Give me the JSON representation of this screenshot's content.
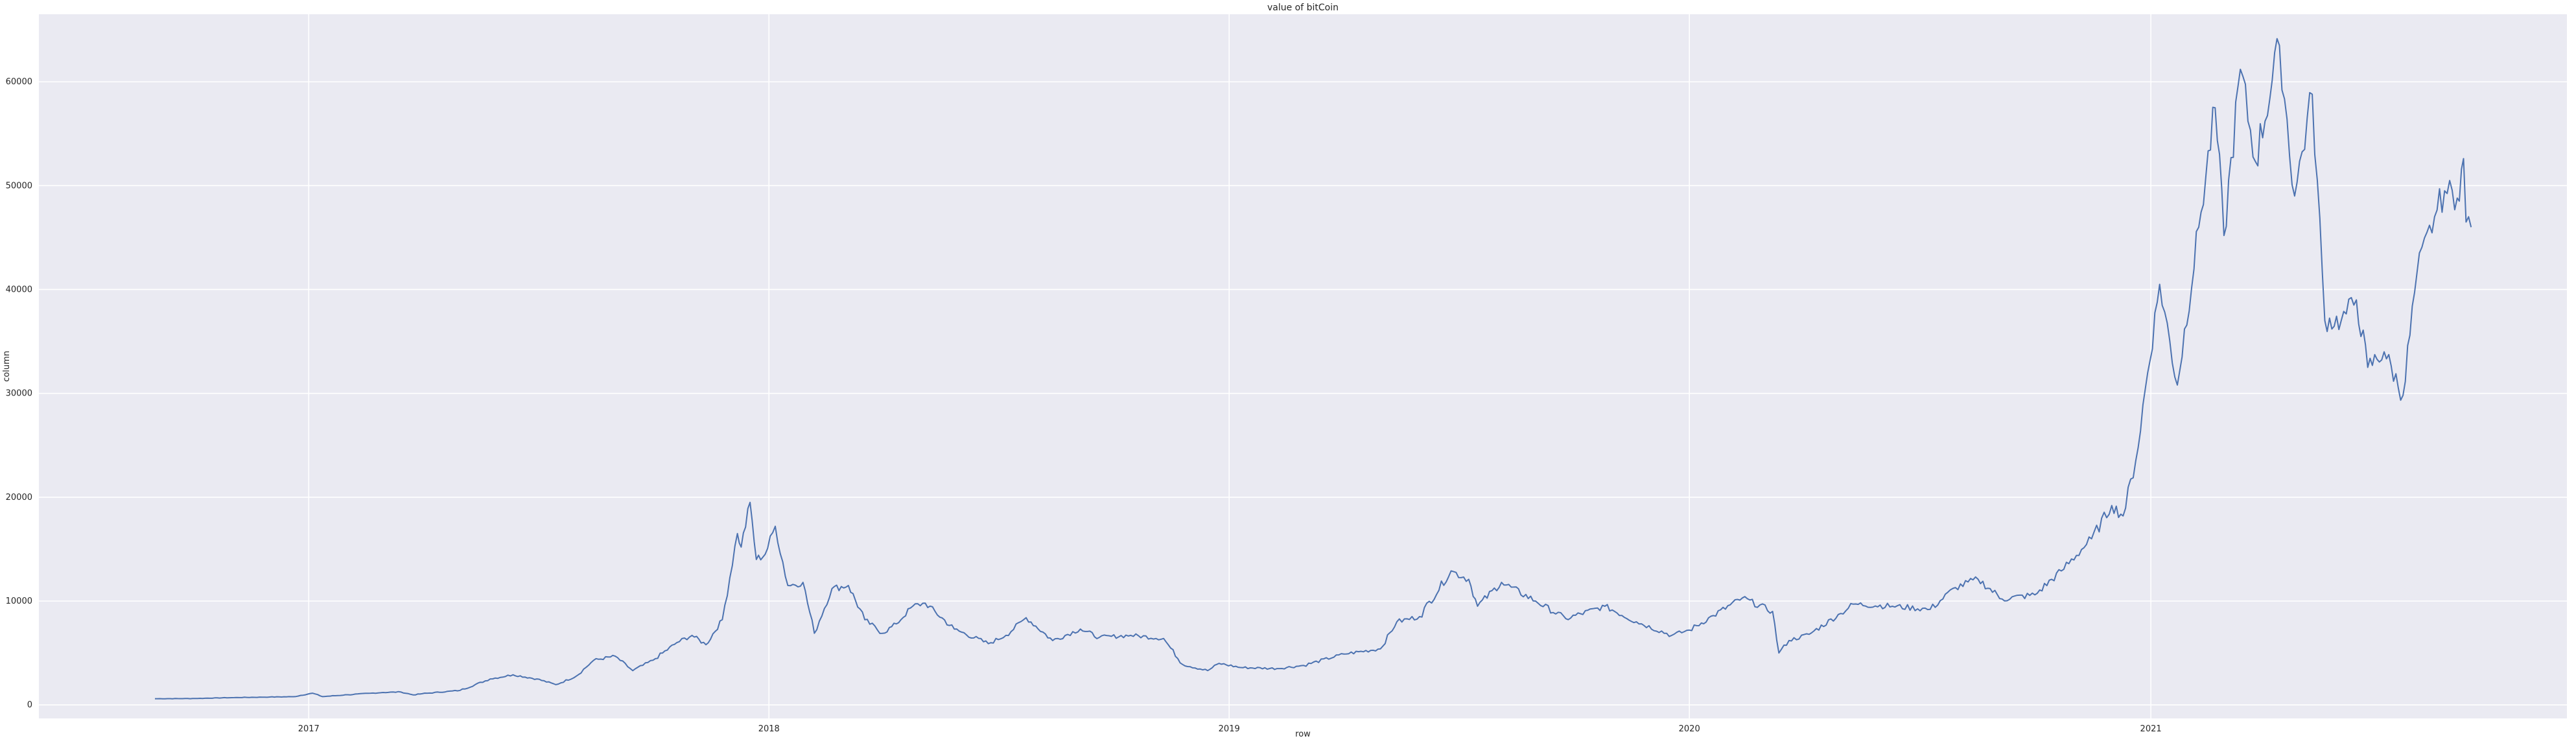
{
  "chart_data": {
    "type": "line",
    "title": "value of bitCoin",
    "xlabel": "row",
    "ylabel": "column",
    "grid": true,
    "legend": "none",
    "xlim": [
      "2016-06-01",
      "2021-11-27"
    ],
    "ylim": [
      -1300,
      66500
    ],
    "x_ticks": [
      "2017-01-01",
      "2018-01-01",
      "2019-01-01",
      "2020-01-01",
      "2021-01-01"
    ],
    "x_tick_labels": [
      "2017",
      "2018",
      "2019",
      "2020",
      "2021"
    ],
    "y_ticks": [
      0,
      10000,
      20000,
      30000,
      40000,
      50000,
      60000
    ],
    "y_tick_labels": [
      "0",
      "10000",
      "20000",
      "30000",
      "40000",
      "50000",
      "60000"
    ],
    "series": [
      {
        "color": "#4c72b0",
        "points": [
          [
            "2016-09-01",
            600
          ],
          [
            "2016-10-01",
            615
          ],
          [
            "2016-11-01",
            700
          ],
          [
            "2016-12-01",
            760
          ],
          [
            "2016-12-20",
            790
          ],
          [
            "2017-01-04",
            1130
          ],
          [
            "2017-01-12",
            800
          ],
          [
            "2017-02-01",
            980
          ],
          [
            "2017-03-01",
            1200
          ],
          [
            "2017-03-15",
            1250
          ],
          [
            "2017-03-25",
            960
          ],
          [
            "2017-04-01",
            1080
          ],
          [
            "2017-05-01",
            1400
          ],
          [
            "2017-05-25",
            2500
          ],
          [
            "2017-06-12",
            2900
          ],
          [
            "2017-07-01",
            2500
          ],
          [
            "2017-07-16",
            1950
          ],
          [
            "2017-08-01",
            2750
          ],
          [
            "2017-08-15",
            4300
          ],
          [
            "2017-09-01",
            4700
          ],
          [
            "2017-09-15",
            3300
          ],
          [
            "2017-10-01",
            4300
          ],
          [
            "2017-10-20",
            6000
          ],
          [
            "2017-11-01",
            6700
          ],
          [
            "2017-11-12",
            5800
          ],
          [
            "2017-11-25",
            8200
          ],
          [
            "2017-12-07",
            16500
          ],
          [
            "2017-12-10",
            15200
          ],
          [
            "2017-12-17",
            19500
          ],
          [
            "2017-12-22",
            14000
          ],
          [
            "2017-12-29",
            14500
          ],
          [
            "2018-01-06",
            17200
          ],
          [
            "2018-01-16",
            11500
          ],
          [
            "2018-01-28",
            11800
          ],
          [
            "2018-02-06",
            6900
          ],
          [
            "2018-02-20",
            11200
          ],
          [
            "2018-03-05",
            11500
          ],
          [
            "2018-03-18",
            8200
          ],
          [
            "2018-04-01",
            6900
          ],
          [
            "2018-04-12",
            7800
          ],
          [
            "2018-04-25",
            9500
          ],
          [
            "2018-05-05",
            9800
          ],
          [
            "2018-05-28",
            7300
          ],
          [
            "2018-06-24",
            5900
          ],
          [
            "2018-07-08",
            6700
          ],
          [
            "2018-07-24",
            8400
          ],
          [
            "2018-08-14",
            6200
          ],
          [
            "2018-09-05",
            7300
          ],
          [
            "2018-09-20",
            6500
          ],
          [
            "2018-10-15",
            6700
          ],
          [
            "2018-11-10",
            6400
          ],
          [
            "2018-11-25",
            3900
          ],
          [
            "2018-12-15",
            3300
          ],
          [
            "2018-12-24",
            4000
          ],
          [
            "2019-01-10",
            3600
          ],
          [
            "2019-02-08",
            3500
          ],
          [
            "2019-03-01",
            3800
          ],
          [
            "2019-04-02",
            4900
          ],
          [
            "2019-05-01",
            5400
          ],
          [
            "2019-05-14",
            8000
          ],
          [
            "2019-06-01",
            8500
          ],
          [
            "2019-06-26",
            12900
          ],
          [
            "2019-07-10",
            12100
          ],
          [
            "2019-07-17",
            9500
          ],
          [
            "2019-08-05",
            11800
          ],
          [
            "2019-09-01",
            10000
          ],
          [
            "2019-09-25",
            8300
          ],
          [
            "2019-10-26",
            9500
          ],
          [
            "2019-11-20",
            8000
          ],
          [
            "2019-12-18",
            6700
          ],
          [
            "2020-01-01",
            7200
          ],
          [
            "2020-01-20",
            8600
          ],
          [
            "2020-02-12",
            10300
          ],
          [
            "2020-03-07",
            9000
          ],
          [
            "2020-03-12",
            5000
          ],
          [
            "2020-03-20",
            6200
          ],
          [
            "2020-04-05",
            6800
          ],
          [
            "2020-04-30",
            8800
          ],
          [
            "2020-05-10",
            9700
          ],
          [
            "2020-06-10",
            9500
          ],
          [
            "2020-07-10",
            9200
          ],
          [
            "2020-07-30",
            11300
          ],
          [
            "2020-08-17",
            12100
          ],
          [
            "2020-09-05",
            10200
          ],
          [
            "2020-10-01",
            10600
          ],
          [
            "2020-10-22",
            12900
          ],
          [
            "2020-11-15",
            16000
          ],
          [
            "2020-12-01",
            19200
          ],
          [
            "2020-12-10",
            18200
          ],
          [
            "2020-12-20",
            23500
          ],
          [
            "2021-01-08",
            40500
          ],
          [
            "2021-01-22",
            30800
          ],
          [
            "2021-02-08",
            46000
          ],
          [
            "2021-02-21",
            57500
          ],
          [
            "2021-02-28",
            45200
          ],
          [
            "2021-03-13",
            61200
          ],
          [
            "2021-03-25",
            52300
          ],
          [
            "2021-04-13",
            63500
          ],
          [
            "2021-04-25",
            49000
          ],
          [
            "2021-05-09",
            58800
          ],
          [
            "2021-05-19",
            37000
          ],
          [
            "2021-06-01",
            37000
          ],
          [
            "2021-06-13",
            39000
          ],
          [
            "2021-06-22",
            32500
          ],
          [
            "2021-07-05",
            34000
          ],
          [
            "2021-07-20",
            29800
          ],
          [
            "2021-07-31",
            41500
          ],
          [
            "2021-08-14",
            47000
          ],
          [
            "2021-08-22",
            49500
          ],
          [
            "2021-09-01",
            48800
          ],
          [
            "2021-09-06",
            52600
          ],
          [
            "2021-09-08",
            46500
          ],
          [
            "2021-09-12",
            46000
          ]
        ]
      }
    ]
  }
}
